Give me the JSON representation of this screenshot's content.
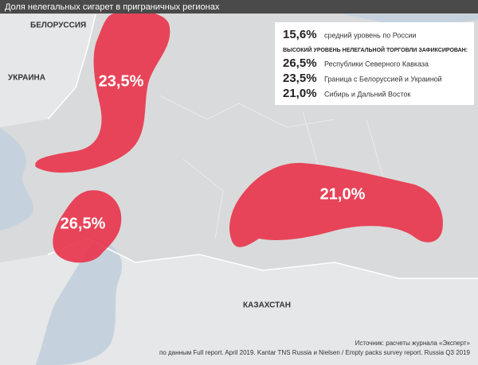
{
  "header": {
    "title": "Доля нелегальных сигарет в приграничных регионах"
  },
  "legend": {
    "average": {
      "value": "15,6%",
      "label": "средний уровень по России"
    },
    "heading": "ВЫСОКИЙ УРОВЕНЬ НЕЛЕГАЛЬНОЙ ТОРГОВЛИ ЗАФИКСИРОВАН:",
    "items": [
      {
        "value": "26,5%",
        "label": "Республики Северного Кавказа"
      },
      {
        "value": "23,5%",
        "label": "Граница с Белоруссией и Украиной"
      },
      {
        "value": "21,0%",
        "label": "Сибирь и Дальний Восток"
      }
    ]
  },
  "regions": [
    {
      "label": "23,5%"
    },
    {
      "label": "26,5%"
    },
    {
      "label": "21,0%"
    }
  ],
  "countries": [
    "БЕЛОРУССИЯ",
    "УКРАИНА",
    "КАЗАХСТАН"
  ],
  "source": [
    "Источник: расчеты журнала «Эксперт»",
    "по данным Full report. April 2019. Kantar TNS Russia и Nielsen / Empty packs survey report. Russia Q3 2019"
  ]
}
